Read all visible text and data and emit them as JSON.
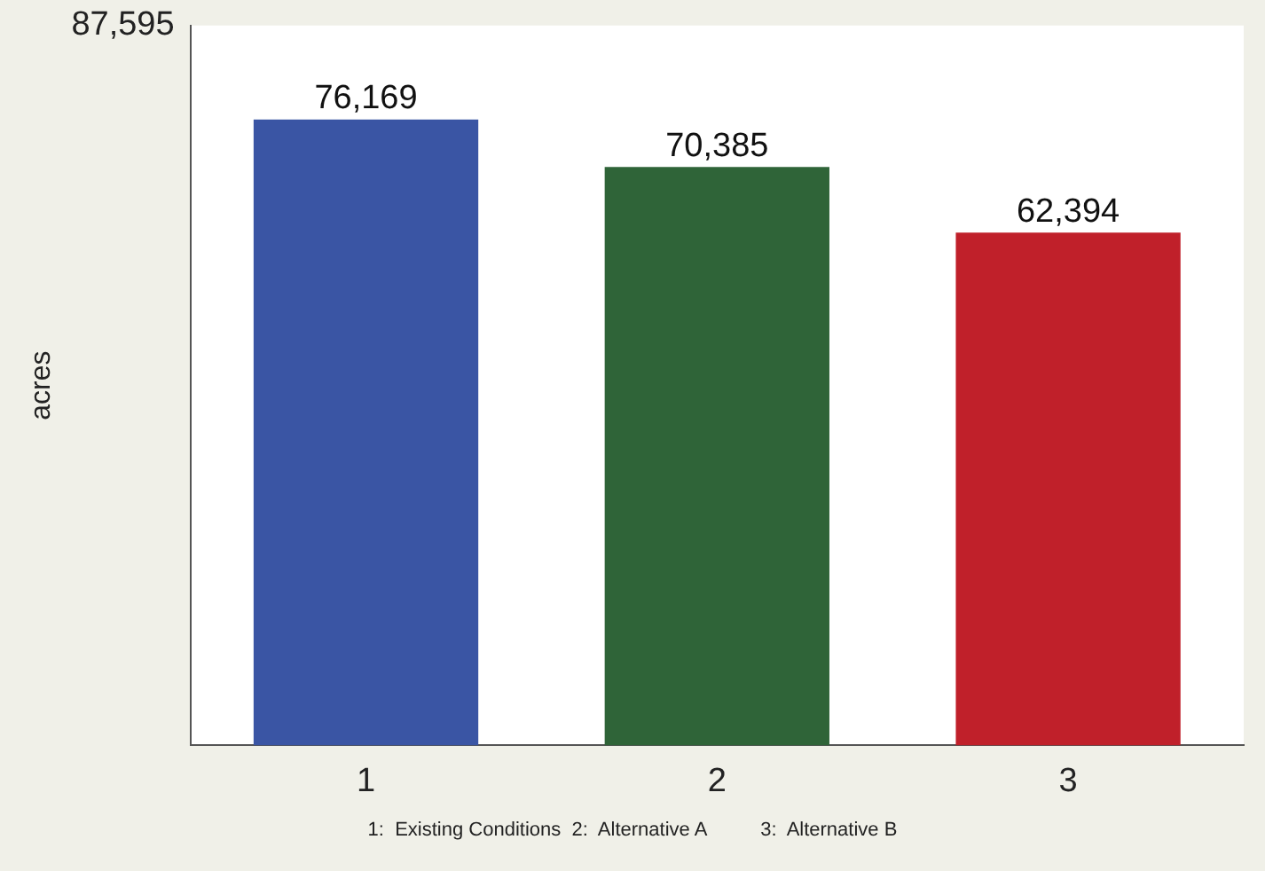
{
  "chart_data": {
    "type": "bar",
    "ylabel": "acres",
    "categories": [
      "1",
      "2",
      "3"
    ],
    "values": [
      76169,
      70385,
      62394
    ],
    "colors": [
      "#3a55a4",
      "#2f6438",
      "#c0202a"
    ],
    "ylim": [
      0,
      87595
    ],
    "yticks": [
      0,
      {
        "value": 87595,
        "label": "87,595"
      }
    ],
    "grid": false,
    "legend": false,
    "value_labels": [
      "76,169",
      "70,385",
      "62,394"
    ],
    "annotations": [
      "1:  Existing Conditions  2:  Alternative A          3:  Alternative B"
    ]
  }
}
